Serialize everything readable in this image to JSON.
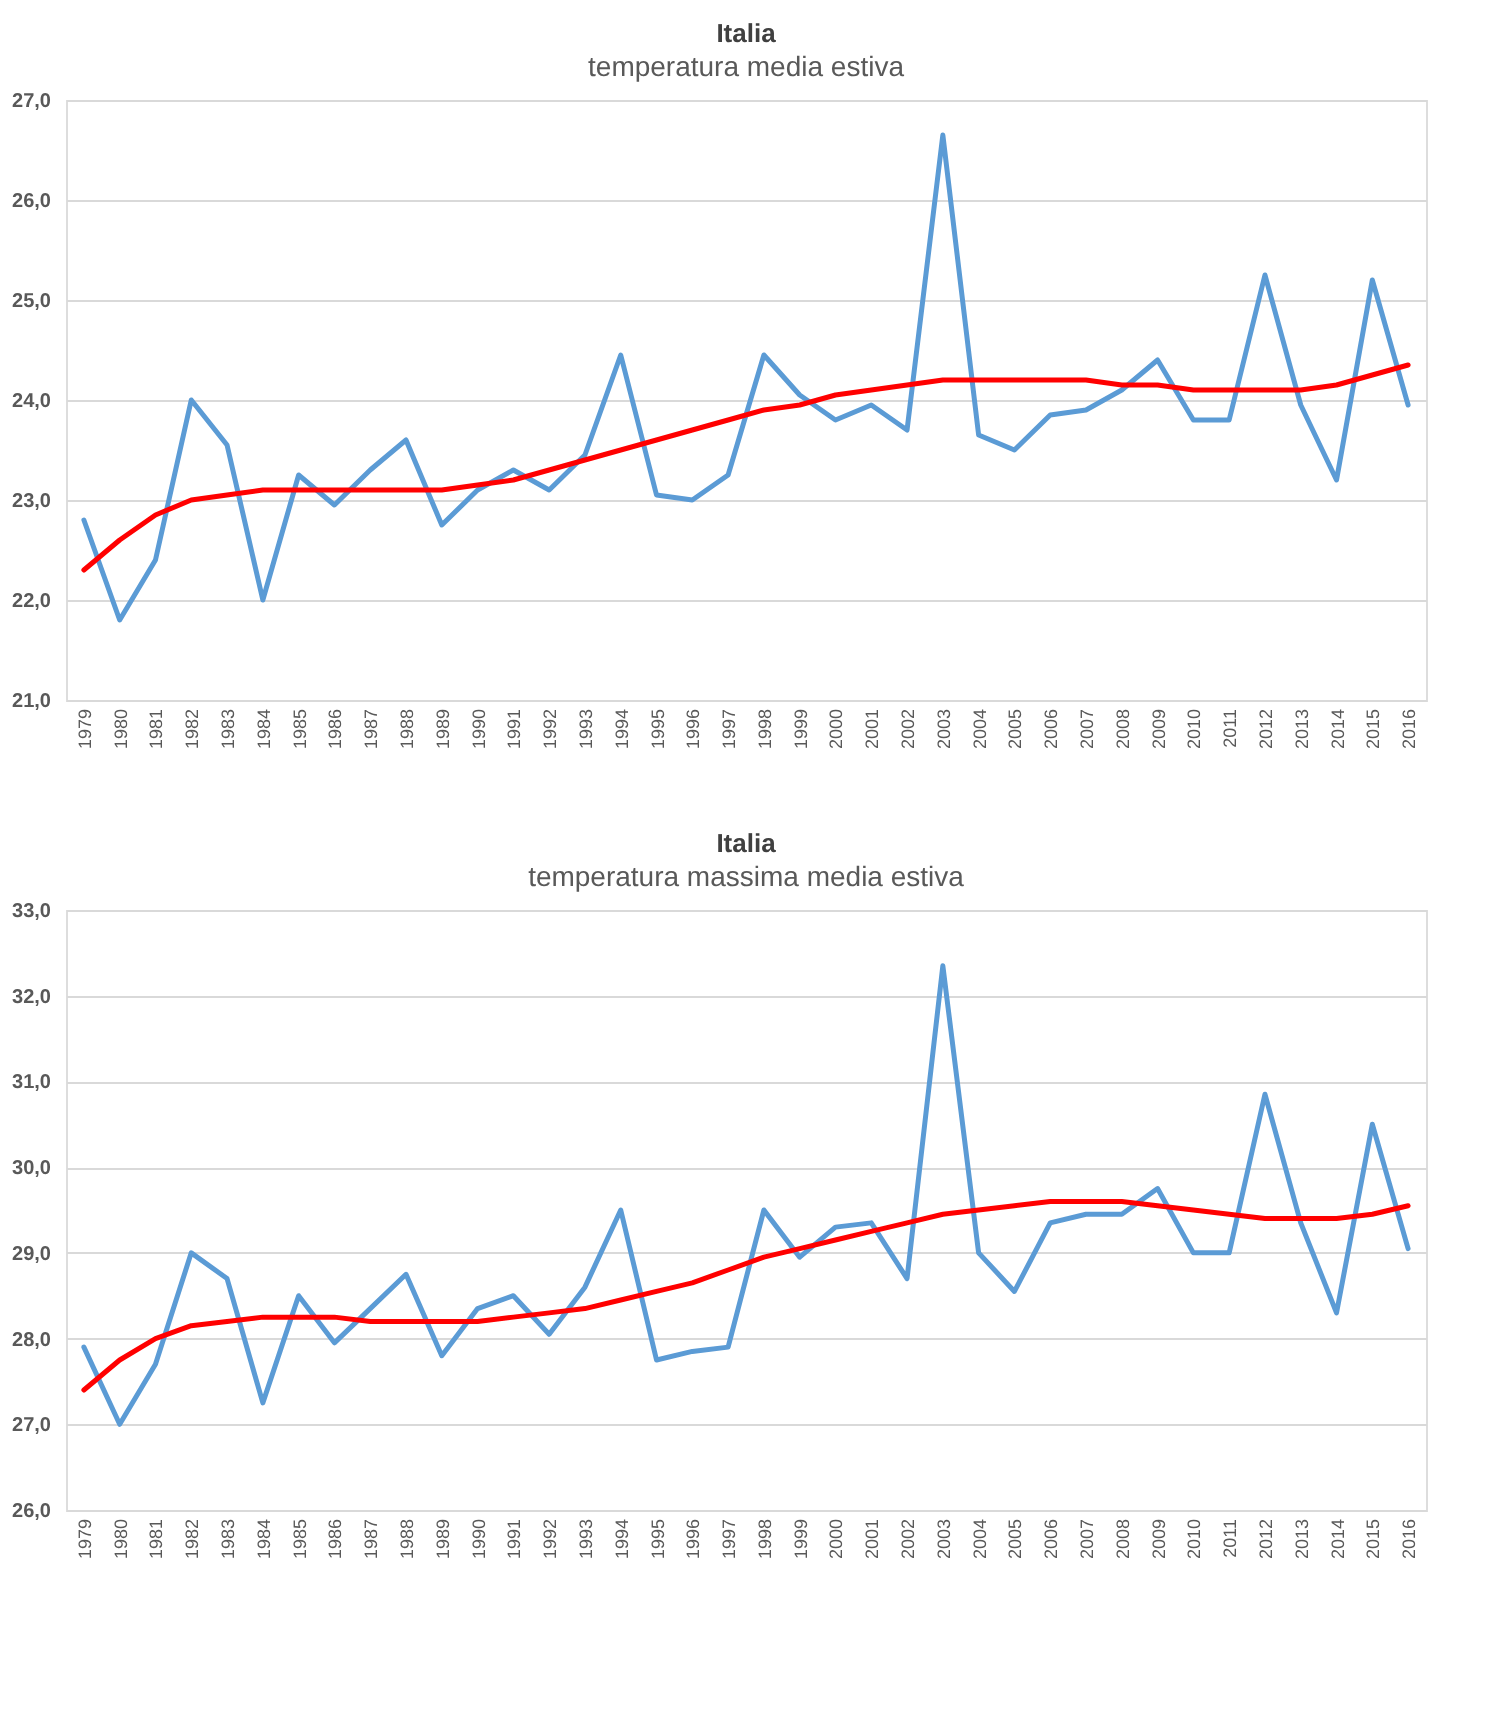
{
  "chart_data": [
    {
      "type": "line",
      "title": "Italia",
      "subtitle": "temperatura media estiva",
      "categories": [
        "1979",
        "1980",
        "1981",
        "1982",
        "1983",
        "1984",
        "1985",
        "1986",
        "1987",
        "1988",
        "1989",
        "1990",
        "1991",
        "1992",
        "1993",
        "1994",
        "1995",
        "1996",
        "1997",
        "1998",
        "1999",
        "2000",
        "2001",
        "2002",
        "2003",
        "2004",
        "2005",
        "2006",
        "2007",
        "2008",
        "2009",
        "2010",
        "2011",
        "2012",
        "2013",
        "2014",
        "2015",
        "2016"
      ],
      "series": [
        {
          "color": "#5b9bd5",
          "values": [
            22.8,
            21.8,
            22.4,
            24.0,
            23.55,
            22.0,
            23.25,
            22.95,
            23.3,
            23.6,
            22.75,
            23.1,
            23.3,
            23.1,
            23.45,
            24.45,
            23.05,
            23.0,
            23.25,
            24.45,
            24.05,
            23.8,
            23.95,
            23.7,
            26.65,
            23.65,
            23.5,
            23.85,
            23.9,
            24.1,
            24.4,
            23.8,
            23.8,
            25.25,
            23.95,
            23.2,
            25.2,
            23.95
          ]
        },
        {
          "type": "line",
          "color": "#ff0000",
          "values": [
            22.3,
            22.6,
            22.85,
            23.0,
            23.05,
            23.1,
            23.1,
            23.1,
            23.1,
            23.1,
            23.1,
            23.15,
            23.2,
            23.3,
            23.4,
            23.5,
            23.6,
            23.7,
            23.8,
            23.9,
            23.95,
            24.05,
            24.1,
            24.15,
            24.2,
            24.2,
            24.2,
            24.2,
            24.2,
            24.15,
            24.15,
            24.1,
            24.1,
            24.1,
            24.1,
            24.15,
            24.25,
            24.35
          ]
        }
      ],
      "ylim": [
        21,
        27
      ],
      "yticks": [
        {
          "value": 21,
          "label": "21,0"
        },
        {
          "value": 22,
          "label": "22,0"
        },
        {
          "value": 23,
          "label": "23,0"
        },
        {
          "value": 24,
          "label": "24,0"
        },
        {
          "value": 25,
          "label": "25,0"
        },
        {
          "value": 26,
          "label": "26,0"
        },
        {
          "value": 27,
          "label": "27,0"
        }
      ],
      "grid": "y",
      "marker": "none",
      "line_style": "solid"
    },
    {
      "type": "line",
      "title": "Italia",
      "subtitle": "temperatura massima media estiva",
      "categories": [
        "1979",
        "1980",
        "1981",
        "1982",
        "1983",
        "1984",
        "1985",
        "1986",
        "1987",
        "1988",
        "1989",
        "1990",
        "1991",
        "1992",
        "1993",
        "1994",
        "1995",
        "1996",
        "1997",
        "1998",
        "1999",
        "2000",
        "2001",
        "2002",
        "2003",
        "2004",
        "2005",
        "2006",
        "2007",
        "2008",
        "2009",
        "2010",
        "2011",
        "2012",
        "2013",
        "2014",
        "2015",
        "2016"
      ],
      "series": [
        {
          "color": "#5b9bd5",
          "values": [
            27.9,
            27.0,
            27.7,
            29.0,
            28.7,
            27.25,
            28.5,
            27.95,
            28.35,
            28.75,
            27.8,
            28.35,
            28.5,
            28.05,
            28.6,
            29.5,
            27.75,
            27.85,
            27.9,
            29.5,
            28.95,
            29.3,
            29.35,
            28.7,
            32.35,
            29.0,
            28.55,
            29.35,
            29.45,
            29.45,
            29.75,
            29.0,
            29.0,
            30.85,
            29.35,
            28.3,
            30.5,
            29.05
          ]
        },
        {
          "type": "line",
          "color": "#ff0000",
          "values": [
            27.4,
            27.75,
            28.0,
            28.15,
            28.2,
            28.25,
            28.25,
            28.25,
            28.2,
            28.2,
            28.2,
            28.2,
            28.25,
            28.3,
            28.35,
            28.45,
            28.55,
            28.65,
            28.8,
            28.95,
            29.05,
            29.15,
            29.25,
            29.35,
            29.45,
            29.5,
            29.55,
            29.6,
            29.6,
            29.6,
            29.55,
            29.5,
            29.45,
            29.4,
            29.4,
            29.4,
            29.45,
            29.55
          ]
        }
      ],
      "ylim": [
        26,
        33
      ],
      "yticks": [
        {
          "value": 26,
          "label": "26,0"
        },
        {
          "value": 27,
          "label": "27,0"
        },
        {
          "value": 28,
          "label": "28,0"
        },
        {
          "value": 29,
          "label": "29,0"
        },
        {
          "value": 30,
          "label": "30,0"
        },
        {
          "value": 31,
          "label": "31,0"
        },
        {
          "value": 32,
          "label": "32,0"
        },
        {
          "value": 33,
          "label": "33,0"
        }
      ],
      "grid": "y",
      "marker": "none",
      "line_style": "solid"
    }
  ]
}
